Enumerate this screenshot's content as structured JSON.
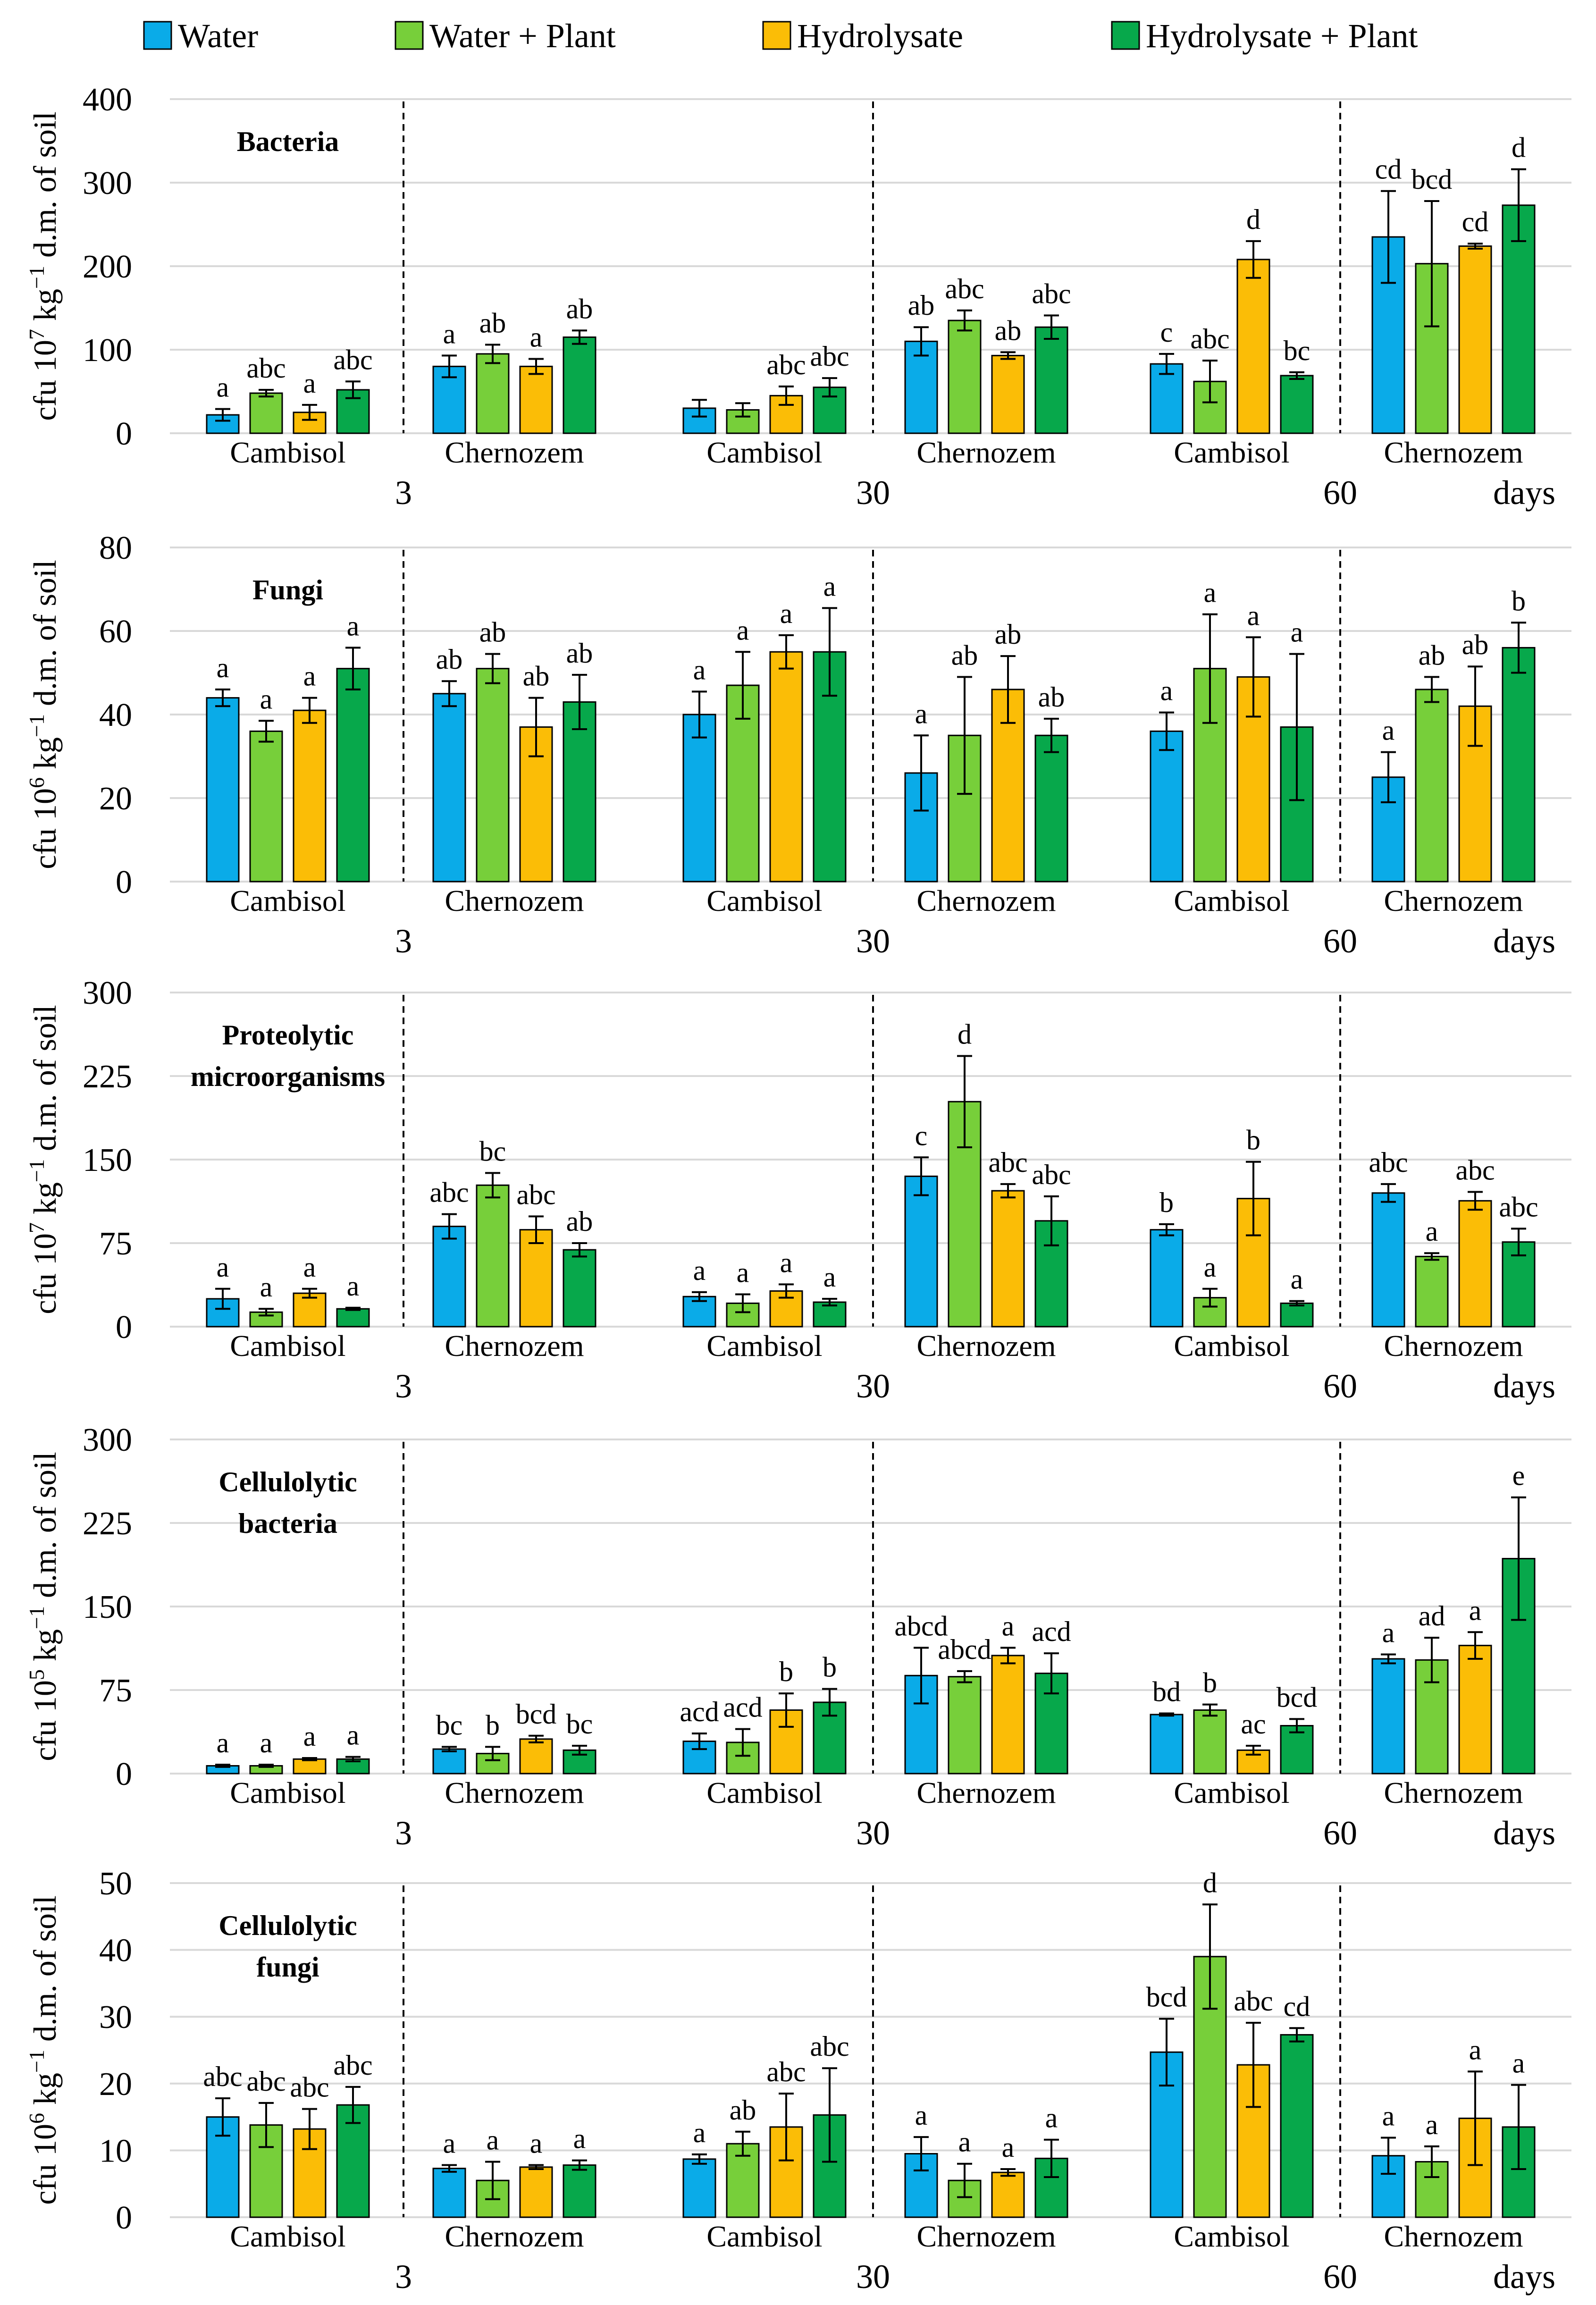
{
  "legend": [
    {
      "name": "Water",
      "color": "#0aabe8"
    },
    {
      "name": "Water + Plant",
      "color": "#77cf3a"
    },
    {
      "name": "Hydrolysate",
      "color": "#fbbd06"
    },
    {
      "name": "Hydrolysate + Plant",
      "color": "#07a84b"
    }
  ],
  "day_labels": [
    "3",
    "30",
    "60"
  ],
  "days_unit": "days",
  "soils": [
    "Cambisol",
    "Chernozem",
    "Cambisol",
    "Chernozem",
    "Cambisol",
    "Chernozem"
  ],
  "chart_data": [
    {
      "type": "bar",
      "title": "Bacteria",
      "title_lines": [
        "Bacteria"
      ],
      "ylabel_parts": [
        "cfu 10",
        "7",
        " kg",
        "−1",
        " d.m. of soil"
      ],
      "ylim": [
        0,
        400
      ],
      "yticks": [
        "0",
        "100",
        "200",
        "300",
        "400"
      ],
      "categories": [
        "Cambisol",
        "Chernozem",
        "Cambisol",
        "Chernozem",
        "Cambisol",
        "Chernozem"
      ],
      "days": [
        "3",
        "3",
        "30",
        "30",
        "60",
        "60"
      ],
      "series": [
        {
          "name": "Water",
          "values": [
            22,
            80,
            30,
            110,
            83,
            235
          ],
          "errors": [
            7,
            13,
            10,
            17,
            12,
            55
          ],
          "letters": [
            "a",
            "a",
            "",
            "ab",
            "c",
            "cd"
          ]
        },
        {
          "name": "Water + Plant",
          "values": [
            48,
            95,
            28,
            135,
            62,
            203
          ],
          "errors": [
            4,
            11,
            8,
            12,
            25,
            75
          ],
          "letters": [
            "abc",
            "ab",
            "",
            "abc",
            "abc",
            "bcd"
          ]
        },
        {
          "name": "Hydrolysate",
          "values": [
            25,
            80,
            45,
            93,
            208,
            224
          ],
          "errors": [
            9,
            9,
            11,
            4,
            22,
            3
          ],
          "letters": [
            "a",
            "a",
            "abc",
            "ab",
            "d",
            "cd"
          ]
        },
        {
          "name": "Hydrolysate + Plant",
          "values": [
            52,
            115,
            55,
            127,
            69,
            273
          ],
          "errors": [
            10,
            8,
            11,
            14,
            4,
            43
          ],
          "letters": [
            "abc",
            "ab",
            "abc",
            "abc",
            "bc",
            "d"
          ]
        }
      ]
    },
    {
      "type": "bar",
      "title": "Fungi",
      "title_lines": [
        "Fungi"
      ],
      "ylabel_parts": [
        "cfu 10",
        "6",
        " kg",
        "−1",
        " d.m. of soil"
      ],
      "ylim": [
        0,
        80
      ],
      "yticks": [
        "0",
        "20",
        "40",
        "60",
        "80"
      ],
      "categories": [
        "Cambisol",
        "Chernozem",
        "Cambisol",
        "Chernozem",
        "Cambisol",
        "Chernozem"
      ],
      "days": [
        "3",
        "3",
        "30",
        "30",
        "60",
        "60"
      ],
      "series": [
        {
          "name": "Water",
          "values": [
            44,
            45,
            40,
            26,
            36,
            25
          ],
          "errors": [
            2,
            3,
            5.5,
            9,
            4.5,
            6
          ],
          "letters": [
            "a",
            "ab",
            "a",
            "a",
            "a",
            "a"
          ]
        },
        {
          "name": "Water + Plant",
          "values": [
            36,
            51,
            47,
            35,
            51,
            46
          ],
          "errors": [
            2.5,
            3.5,
            8,
            14,
            13,
            3
          ],
          "letters": [
            "a",
            "ab",
            "a",
            "ab",
            "a",
            "ab"
          ]
        },
        {
          "name": "Hydrolysate",
          "values": [
            41,
            37,
            55,
            46,
            49,
            42
          ],
          "errors": [
            3,
            7,
            4,
            8,
            9.5,
            9.5
          ],
          "letters": [
            "a",
            "ab",
            "a",
            "ab",
            "a",
            "ab"
          ]
        },
        {
          "name": "Hydrolysate + Plant",
          "values": [
            51,
            43,
            55,
            35,
            37,
            56
          ],
          "errors": [
            5,
            6.5,
            10.5,
            4,
            17.5,
            6
          ],
          "letters": [
            "a",
            "ab",
            "a",
            "ab",
            "a",
            "b"
          ]
        }
      ]
    },
    {
      "type": "bar",
      "title": "Proteolytic microorganisms",
      "title_lines": [
        "Proteolytic",
        "microorganisms"
      ],
      "ylabel_parts": [
        "cfu 10",
        "7",
        " kg",
        "−1",
        " d.m. of soil"
      ],
      "ylim": [
        0,
        300
      ],
      "yticks": [
        "0",
        "75",
        "150",
        "225",
        "300"
      ],
      "categories": [
        "Cambisol",
        "Chernozem",
        "Cambisol",
        "Chernozem",
        "Cambisol",
        "Chernozem"
      ],
      "days": [
        "3",
        "3",
        "30",
        "30",
        "60",
        "60"
      ],
      "series": [
        {
          "name": "Water",
          "values": [
            25,
            90,
            27,
            135,
            87,
            120
          ],
          "errors": [
            9,
            11,
            4,
            17,
            5,
            8
          ],
          "letters": [
            "a",
            "abc",
            "a",
            "c",
            "b",
            "abc"
          ]
        },
        {
          "name": "Water + Plant",
          "values": [
            13,
            127,
            21,
            202,
            26,
            63
          ],
          "errors": [
            3,
            11,
            8,
            41,
            8,
            3
          ],
          "letters": [
            "a",
            "bc",
            "a",
            "d",
            "a",
            "a"
          ]
        },
        {
          "name": "Hydrolysate",
          "values": [
            30,
            87,
            32,
            122,
            115,
            113
          ],
          "errors": [
            4,
            12,
            6,
            6,
            33,
            8
          ],
          "letters": [
            "a",
            "abc",
            "a",
            "abc",
            "b",
            "abc"
          ]
        },
        {
          "name": "Hydrolysate + Plant",
          "values": [
            16,
            69,
            22,
            95,
            21,
            76
          ],
          "errors": [
            1,
            6,
            3,
            22,
            2,
            12
          ],
          "letters": [
            "a",
            "ab",
            "a",
            "abc",
            "a",
            "abc"
          ]
        }
      ]
    },
    {
      "type": "bar",
      "title": "Cellulolytic bacteria",
      "title_lines": [
        "Cellulolytic",
        "bacteria"
      ],
      "ylabel_parts": [
        "cfu 10",
        "5",
        " kg",
        "−1",
        " d.m. of soil"
      ],
      "ylim": [
        0,
        300
      ],
      "yticks": [
        "0",
        "75",
        "150",
        "225",
        "300"
      ],
      "categories": [
        "Cambisol",
        "Chernozem",
        "Cambisol",
        "Chernozem",
        "Cambisol",
        "Chernozem"
      ],
      "days": [
        "3",
        "3",
        "30",
        "30",
        "60",
        "60"
      ],
      "series": [
        {
          "name": "Water",
          "values": [
            7,
            22,
            29,
            88,
            53,
            103
          ],
          "errors": [
            1,
            2,
            7,
            25,
            1,
            4
          ],
          "letters": [
            "a",
            "bc",
            "acd",
            "abcd",
            "bd",
            "a"
          ]
        },
        {
          "name": "Water + Plant",
          "values": [
            7,
            18,
            28,
            87,
            57,
            102
          ],
          "errors": [
            1,
            6,
            12,
            5,
            5,
            20
          ],
          "letters": [
            "a",
            "b",
            "acd",
            "abcd",
            "b",
            "ad"
          ]
        },
        {
          "name": "Hydrolysate",
          "values": [
            13,
            31,
            57,
            106,
            21,
            115
          ],
          "errors": [
            1,
            3,
            15,
            7,
            4,
            12
          ],
          "letters": [
            "a",
            "bcd",
            "b",
            "a",
            "ac",
            "a"
          ]
        },
        {
          "name": "Hydrolysate + Plant",
          "values": [
            13,
            21,
            64,
            90,
            43,
            193
          ],
          "errors": [
            2,
            4,
            12,
            18,
            6,
            55
          ],
          "letters": [
            "a",
            "bc",
            "b",
            "acd",
            "bcd",
            "e"
          ]
        }
      ]
    },
    {
      "type": "bar",
      "title": "Cellulolytic fungi",
      "title_lines": [
        "Cellulolytic",
        "fungi"
      ],
      "ylabel_parts": [
        "cfu 10",
        "6",
        " kg",
        "−1",
        " d.m. of soil"
      ],
      "ylim": [
        0,
        50
      ],
      "yticks": [
        "0",
        "10",
        "20",
        "30",
        "40",
        "50"
      ],
      "categories": [
        "Cambisol",
        "Chernozem",
        "Cambisol",
        "Chernozem",
        "Cambisol",
        "Chernozem"
      ],
      "days": [
        "3",
        "3",
        "30",
        "30",
        "60",
        "60"
      ],
      "series": [
        {
          "name": "Water",
          "values": [
            15,
            7.3,
            8.7,
            9.5,
            24.7,
            9.2
          ],
          "errors": [
            2.8,
            0.5,
            0.7,
            2.5,
            5,
            2.7
          ],
          "letters": [
            "abc",
            "a",
            "a",
            "a",
            "bcd",
            "a"
          ]
        },
        {
          "name": "Water + Plant",
          "values": [
            13.8,
            5.5,
            11,
            5.5,
            39,
            8.3
          ],
          "errors": [
            3.3,
            2.8,
            1.8,
            2.5,
            7.8,
            2.3
          ],
          "letters": [
            "abc",
            "a",
            "ab",
            "a",
            "d",
            "a"
          ]
        },
        {
          "name": "Hydrolysate",
          "values": [
            13.2,
            7.5,
            13.5,
            6.7,
            22.8,
            14.8
          ],
          "errors": [
            3,
            0.3,
            5,
            0.5,
            6.3,
            7
          ],
          "letters": [
            "abc",
            "a",
            "abc",
            "a",
            "abc",
            "a"
          ]
        },
        {
          "name": "Hydrolysate + Plant",
          "values": [
            16.8,
            7.8,
            15.3,
            8.8,
            27.3,
            13.5
          ],
          "errors": [
            2.7,
            0.7,
            7,
            2.8,
            1,
            6.3
          ],
          "letters": [
            "abc",
            "a",
            "abc",
            "a",
            "cd",
            "a"
          ]
        }
      ]
    }
  ]
}
